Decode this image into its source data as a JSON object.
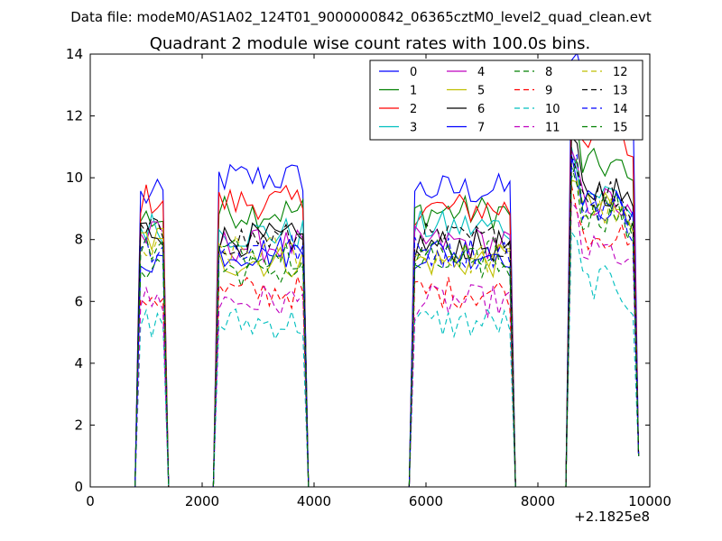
{
  "chart_data": {
    "type": "line",
    "suptitle": "Data file: modeM0/AS1A02_124T01_9000000842_06365cztM0_level2_quad_clean.evt",
    "title": "Quadrant 2 module wise count rates with 100.0s bins.",
    "xlabel": "",
    "ylabel": "",
    "x_offset_label": "+2.1825e8",
    "xlim": [
      0,
      10000
    ],
    "ylim": [
      0,
      14
    ],
    "xticks": [
      0,
      2000,
      4000,
      6000,
      8000,
      10000
    ],
    "yticks": [
      0,
      2,
      4,
      6,
      8,
      10,
      12,
      14
    ],
    "xtick_labels": [
      "0",
      "2000",
      "4000",
      "6000",
      "8000",
      "10000"
    ],
    "ytick_labels": [
      "0",
      "2",
      "4",
      "6",
      "8",
      "10",
      "12",
      "14"
    ],
    "grid": false,
    "legend_position": "top-right",
    "segments": [
      {
        "start": 900,
        "end": 1300
      },
      {
        "start": 2300,
        "end": 3800
      },
      {
        "start": 5800,
        "end": 7500
      },
      {
        "start": 8600,
        "end": 9700
      }
    ],
    "series": [
      {
        "name": "0",
        "color": "#0000ff",
        "dash": "solid",
        "levels": [
          9.4,
          10.0,
          9.6,
          12.9
        ]
      },
      {
        "name": "1",
        "color": "#008000",
        "dash": "solid",
        "levels": [
          8.7,
          8.9,
          8.9,
          10.4
        ]
      },
      {
        "name": "2",
        "color": "#ff0000",
        "dash": "solid",
        "levels": [
          9.3,
          9.2,
          9.0,
          11.4
        ]
      },
      {
        "name": "3",
        "color": "#00bfbf",
        "dash": "solid",
        "levels": [
          8.4,
          8.2,
          8.4,
          9.5
        ]
      },
      {
        "name": "4",
        "color": "#bf00bf",
        "dash": "solid",
        "levels": [
          8.1,
          7.8,
          7.9,
          9.2
        ]
      },
      {
        "name": "5",
        "color": "#bfbf00",
        "dash": "solid",
        "levels": [
          8.0,
          7.3,
          7.3,
          9.0
        ]
      },
      {
        "name": "6",
        "color": "#000000",
        "dash": "solid",
        "levels": [
          8.3,
          8.0,
          7.8,
          9.6
        ]
      },
      {
        "name": "7",
        "color": "#0000ff",
        "dash": "solid",
        "levels": [
          7.4,
          7.6,
          7.6,
          9.1
        ]
      },
      {
        "name": "8",
        "color": "#008000",
        "dash": "dashed",
        "levels": [
          7.2,
          7.0,
          7.2,
          8.8
        ]
      },
      {
        "name": "9",
        "color": "#ff0000",
        "dash": "dashed",
        "levels": [
          6.2,
          6.3,
          6.3,
          8.2
        ]
      },
      {
        "name": "10",
        "color": "#00bfbf",
        "dash": "dashed",
        "levels": [
          5.3,
          5.3,
          5.3,
          6.6
        ]
      },
      {
        "name": "11",
        "color": "#bf00bf",
        "dash": "dashed",
        "levels": [
          6.0,
          6.0,
          6.0,
          7.6
        ]
      },
      {
        "name": "12",
        "color": "#bfbf00",
        "dash": "dashed",
        "levels": [
          7.6,
          7.6,
          7.4,
          8.9
        ]
      },
      {
        "name": "13",
        "color": "#000000",
        "dash": "dashed",
        "levels": [
          8.2,
          8.0,
          8.0,
          9.5
        ]
      },
      {
        "name": "14",
        "color": "#0000ff",
        "dash": "dashed",
        "levels": [
          7.8,
          7.7,
          7.6,
          9.1
        ]
      },
      {
        "name": "15",
        "color": "#008000",
        "dash": "dashed",
        "levels": [
          7.7,
          7.6,
          7.6,
          9.0
        ]
      }
    ]
  }
}
